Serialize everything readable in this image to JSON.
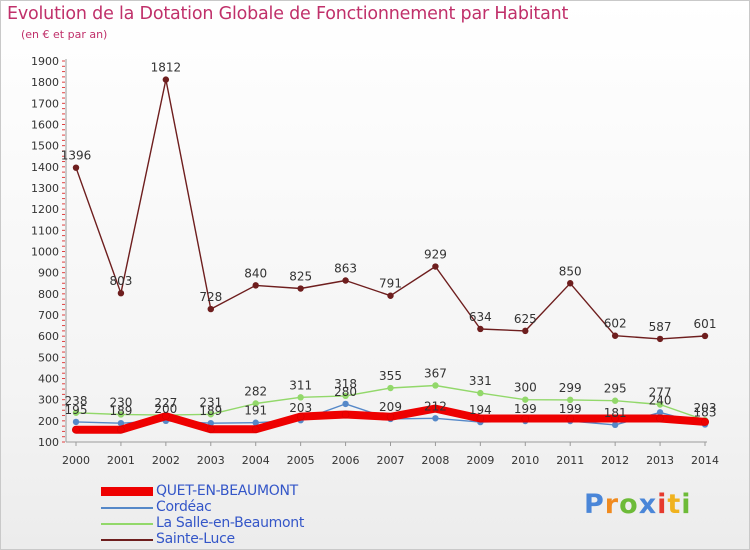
{
  "chart_data": {
    "type": "line",
    "title": "Evolution de la Dotation Globale de Fonctionnement par Habitant",
    "subtitle": "(en € et par an)",
    "xlabel": "",
    "ylabel": "",
    "x": [
      "2000",
      "2001",
      "2002",
      "2003",
      "2004",
      "2005",
      "2006",
      "2007",
      "2008",
      "2009",
      "2010",
      "2011",
      "2012",
      "2013",
      "2014"
    ],
    "ylim": [
      100,
      1900
    ],
    "yticks": [
      100,
      200,
      300,
      400,
      500,
      600,
      700,
      800,
      900,
      1000,
      1100,
      1200,
      1300,
      1400,
      1500,
      1600,
      1700,
      1800,
      1900
    ],
    "grid": false,
    "legend_position": "bottom-left",
    "series": [
      {
        "name": "Sainte-Luce",
        "color": "#6e1e1e",
        "values": [
          1396,
          803,
          1812,
          728,
          840,
          825,
          863,
          791,
          929,
          634,
          625,
          850,
          602,
          587,
          601
        ],
        "labels": [
          "1396",
          "803",
          "1812",
          "728",
          "840",
          "825",
          "863",
          "791",
          "929",
          "634",
          "625",
          "850",
          "602",
          "587",
          "601"
        ]
      },
      {
        "name": "La Salle-en-Beaumont",
        "color": "#92d86a",
        "values": [
          238,
          230,
          227,
          231,
          282,
          311,
          318,
          355,
          367,
          331,
          300,
          299,
          295,
          277,
          203
        ],
        "labels": [
          "238",
          "230",
          "227",
          "231",
          "282",
          "311",
          "318",
          "355",
          "367",
          "331",
          "300",
          "299",
          "295",
          "277",
          "203"
        ]
      },
      {
        "name": "Cordéac",
        "color": "#5588c8",
        "values": [
          195,
          189,
          200,
          189,
          191,
          203,
          280,
          209,
          212,
          194,
          199,
          199,
          181,
          240,
          183
        ],
        "labels": [
          "195",
          "189",
          "200",
          "189",
          "191",
          "203",
          "280",
          "209",
          "212",
          "194",
          "199",
          "199",
          "181",
          "240",
          "183"
        ]
      },
      {
        "name": "QUET-EN-BEAUMONT",
        "color": "#ee0000",
        "values": [
          158,
          158,
          222,
          160,
          160,
          220,
          230,
          219,
          258,
          211,
          211,
          211,
          211,
          211,
          195
        ],
        "labels": [
          "",
          "",
          "",
          "",
          "",
          "",
          "",
          "",
          "",
          "",
          "",
          "",
          "",
          "",
          ""
        ]
      }
    ],
    "legend": [
      "QUET-EN-BEAUMONT",
      "Cordéac",
      "La Salle-en-Beaumont",
      "Sainte-Luce"
    ]
  },
  "brand": {
    "letters": [
      "P",
      "r",
      "o",
      "x",
      "i",
      "t",
      "i"
    ],
    "colors": [
      "#4a86d8",
      "#f08a1e",
      "#6dbb38",
      "#4a86d8",
      "#e63a2e",
      "#f0b21e",
      "#6dbb38"
    ]
  }
}
